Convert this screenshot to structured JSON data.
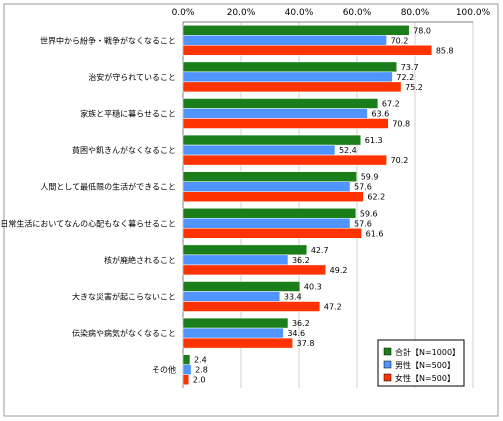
{
  "chart_data": {
    "type": "bar",
    "orientation": "horizontal",
    "title": "",
    "xlabel": "",
    "ylabel": "",
    "xlim": [
      0,
      100
    ],
    "x_ticks": [
      "0.0%",
      "20.0%",
      "40.0%",
      "60.0%",
      "80.0%",
      "100.0%"
    ],
    "grid": true,
    "legend_position": "bottom-right",
    "categories": [
      "世界中から紛争・戦争がなくなること",
      "治安が守られていること",
      "家族と平穏に暮らせること",
      "貧困や飢きんがなくなること",
      "人間として最低限の生活ができること",
      "日常生活においてなんの心配もなく暮らせること",
      "核が廃絶されること",
      "大きな災害が起こらないこと",
      "伝染病や病気がなくなること",
      "その他"
    ],
    "series": [
      {
        "name": "合計【N=1000】",
        "color": "#1a7f1a",
        "values": [
          78.0,
          73.7,
          67.2,
          61.3,
          59.9,
          59.6,
          42.7,
          40.3,
          36.2,
          2.4
        ]
      },
      {
        "name": "男性【N=500】",
        "color": "#4f94ff",
        "values": [
          70.2,
          72.2,
          63.6,
          52.4,
          57.6,
          57.6,
          36.2,
          33.4,
          34.6,
          2.8
        ]
      },
      {
        "name": "女性【N=500】",
        "color": "#ff3300",
        "values": [
          85.8,
          75.2,
          70.8,
          70.2,
          62.2,
          61.6,
          49.2,
          47.2,
          37.8,
          2.0
        ]
      }
    ]
  }
}
